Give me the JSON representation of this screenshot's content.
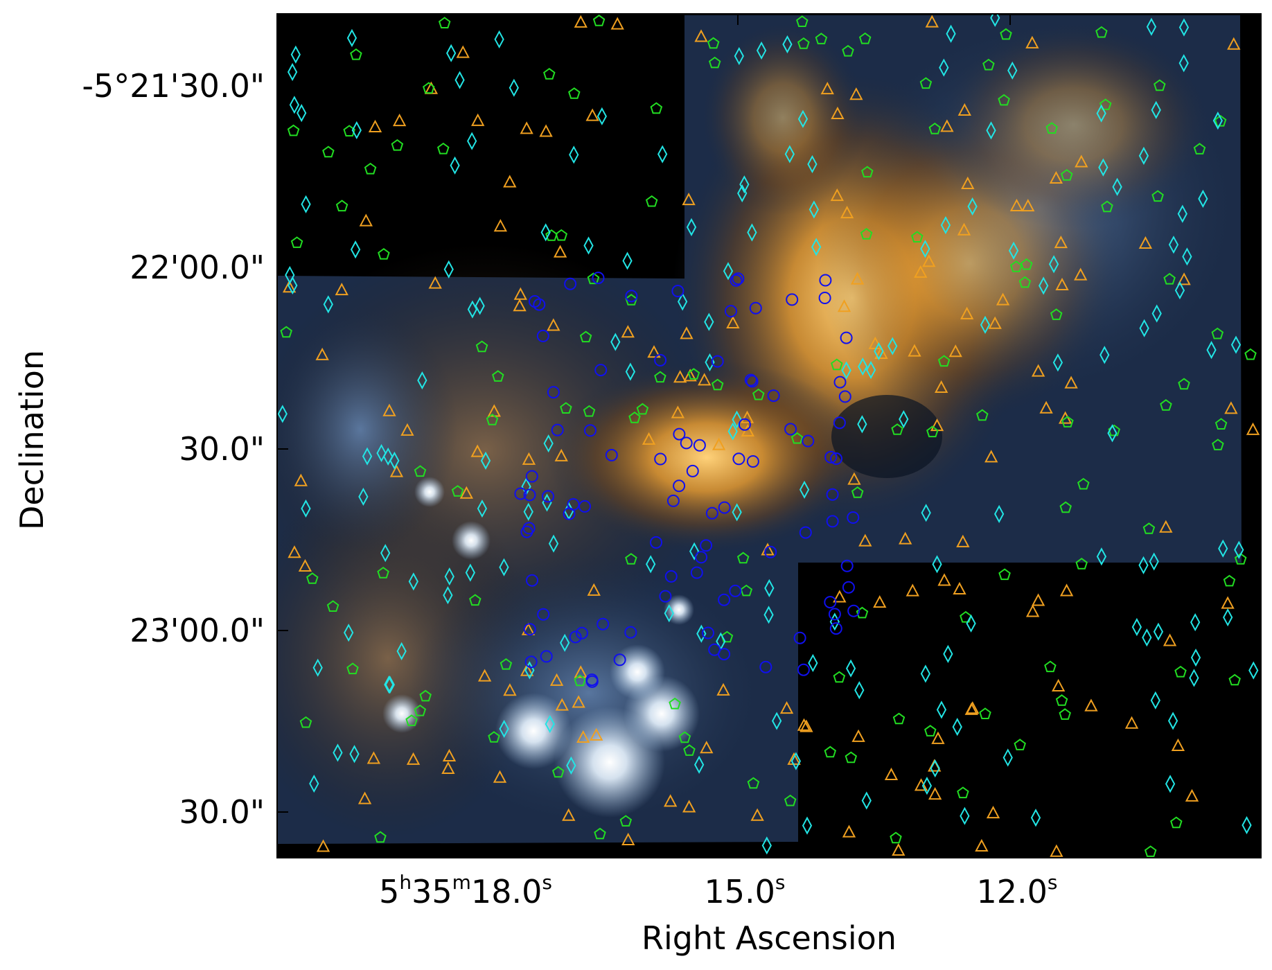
{
  "xlabel": "Right Ascension",
  "ylabel": "Declination",
  "x_ticks": [
    {
      "main": "5",
      "sup1": "h",
      "mid": "35",
      "sup2": "m",
      "tail": "18.0",
      "sup3": "s"
    },
    {
      "main": "15.0",
      "sup3": "s"
    },
    {
      "main": "12.0",
      "sup3": "s"
    }
  ],
  "y_ticks": [
    "-5°21'30.0\"",
    "22'00.0\"",
    "30.0\"",
    "23'00.0\"",
    "30.0\""
  ],
  "marker_colors": {
    "triangle": "#f0a020",
    "pentagon": "#22dd22",
    "diamond": "#22e5e5",
    "circle": "#1010ee"
  }
}
